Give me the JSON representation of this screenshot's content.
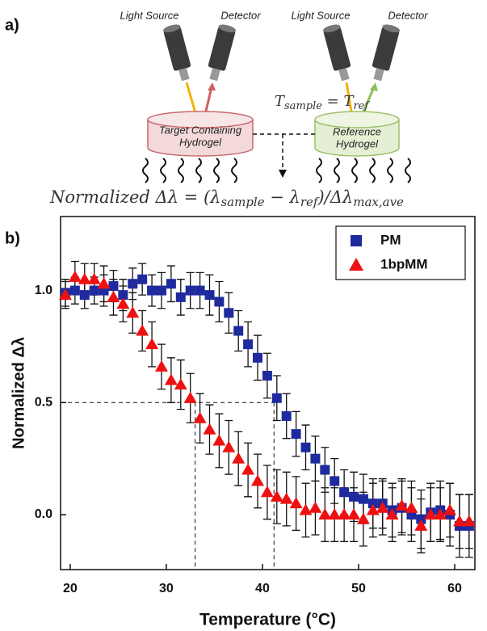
{
  "panel_a": {
    "label": "a)",
    "light_source_left": "Light Source",
    "detector_left": "Detector",
    "light_source_right": "Light Source",
    "detector_right": "Detector",
    "temperature_equation": [
      "T",
      "sample",
      " = T",
      "ref"
    ],
    "target_label": [
      "Target Containing",
      "Hydrogel"
    ],
    "reference_label": [
      "Reference",
      "Hydrogel"
    ],
    "formula": [
      "Normalized Δλ = (λ",
      "sample",
      " − λ",
      "ref",
      ")/Δλ",
      "max,ave"
    ]
  },
  "chart_data": {
    "type": "scatter",
    "panel_label": "b)",
    "x_label": "Temperature (°C)",
    "y_label": "Normalized Δλ",
    "xlim": [
      19,
      62.1
    ],
    "ylim": [
      -0.245,
      1.33
    ],
    "xticks": [
      20,
      30,
      40,
      50,
      60
    ],
    "yticks": [
      {
        "value": 0,
        "label": "0.0"
      },
      {
        "value": 0.5,
        "label": "0.5"
      },
      {
        "value": 1,
        "label": "1.0"
      }
    ],
    "x": [
      19.5,
      20.5,
      21.5,
      22.5,
      23.5,
      24.5,
      25.5,
      26.5,
      27.5,
      28.5,
      29.5,
      30.5,
      31.5,
      32.5,
      33.5,
      34.5,
      35.5,
      36.5,
      37.5,
      38.5,
      39.5,
      40.5,
      41.5,
      42.5,
      43.5,
      44.5,
      45.5,
      46.5,
      47.5,
      48.5,
      49.5,
      50.5,
      51.5,
      52.5,
      53.5,
      54.5,
      55.5,
      56.5,
      57.5,
      58.5,
      59.5,
      60.5,
      61.5
    ],
    "series": [
      {
        "name": "PM",
        "color": "#1f2a9e",
        "marker": "square",
        "values": [
          0.99,
          1.0,
          0.98,
          1.0,
          1.0,
          1.02,
          0.98,
          1.03,
          1.05,
          1.0,
          1.0,
          1.03,
          0.97,
          1.0,
          1.0,
          0.98,
          0.95,
          0.9,
          0.82,
          0.76,
          0.7,
          0.62,
          0.52,
          0.44,
          0.36,
          0.3,
          0.25,
          0.2,
          0.15,
          0.1,
          0.08,
          0.07,
          0.05,
          0.05,
          0.02,
          0.03,
          0.0,
          -0.02,
          0.01,
          0.02,
          0.0,
          -0.05,
          -0.05
        ],
        "errors": [
          0.06,
          0.06,
          0.06,
          0.06,
          0.07,
          0.07,
          0.07,
          0.07,
          0.07,
          0.07,
          0.08,
          0.08,
          0.08,
          0.08,
          0.08,
          0.09,
          0.09,
          0.09,
          0.09,
          0.1,
          0.1,
          0.1,
          0.1,
          0.1,
          0.1,
          0.1,
          0.1,
          0.1,
          0.1,
          0.1,
          0.11,
          0.11,
          0.11,
          0.11,
          0.12,
          0.12,
          0.12,
          0.13,
          0.13,
          0.13,
          0.14,
          0.14,
          0.14
        ]
      },
      {
        "name": "1bpMM",
        "color": "#ee1111",
        "marker": "triangle",
        "values": [
          0.98,
          1.06,
          1.05,
          1.05,
          1.03,
          0.97,
          0.94,
          0.9,
          0.82,
          0.76,
          0.66,
          0.6,
          0.58,
          0.52,
          0.43,
          0.38,
          0.33,
          0.3,
          0.25,
          0.2,
          0.15,
          0.1,
          0.08,
          0.07,
          0.05,
          0.02,
          0.03,
          0.0,
          0.0,
          0.0,
          0.0,
          -0.02,
          0.02,
          0.03,
          0.0,
          0.04,
          0.03,
          -0.05,
          0.0,
          0.0,
          0.02,
          -0.03,
          -0.03
        ],
        "errors": [
          0.06,
          0.07,
          0.07,
          0.07,
          0.08,
          0.08,
          0.08,
          0.09,
          0.09,
          0.1,
          0.1,
          0.1,
          0.11,
          0.11,
          0.11,
          0.11,
          0.12,
          0.12,
          0.12,
          0.12,
          0.12,
          0.12,
          0.12,
          0.12,
          0.12,
          0.12,
          0.12,
          0.12,
          0.12,
          0.12,
          0.12,
          0.12,
          0.12,
          0.12,
          0.12,
          0.12,
          0.12,
          0.12,
          0.12,
          0.12,
          0.12,
          0.12,
          0.12
        ]
      }
    ],
    "reference_lines": {
      "y": 0.5,
      "x": [
        33.0,
        41.2
      ]
    },
    "legend": "upper right"
  }
}
